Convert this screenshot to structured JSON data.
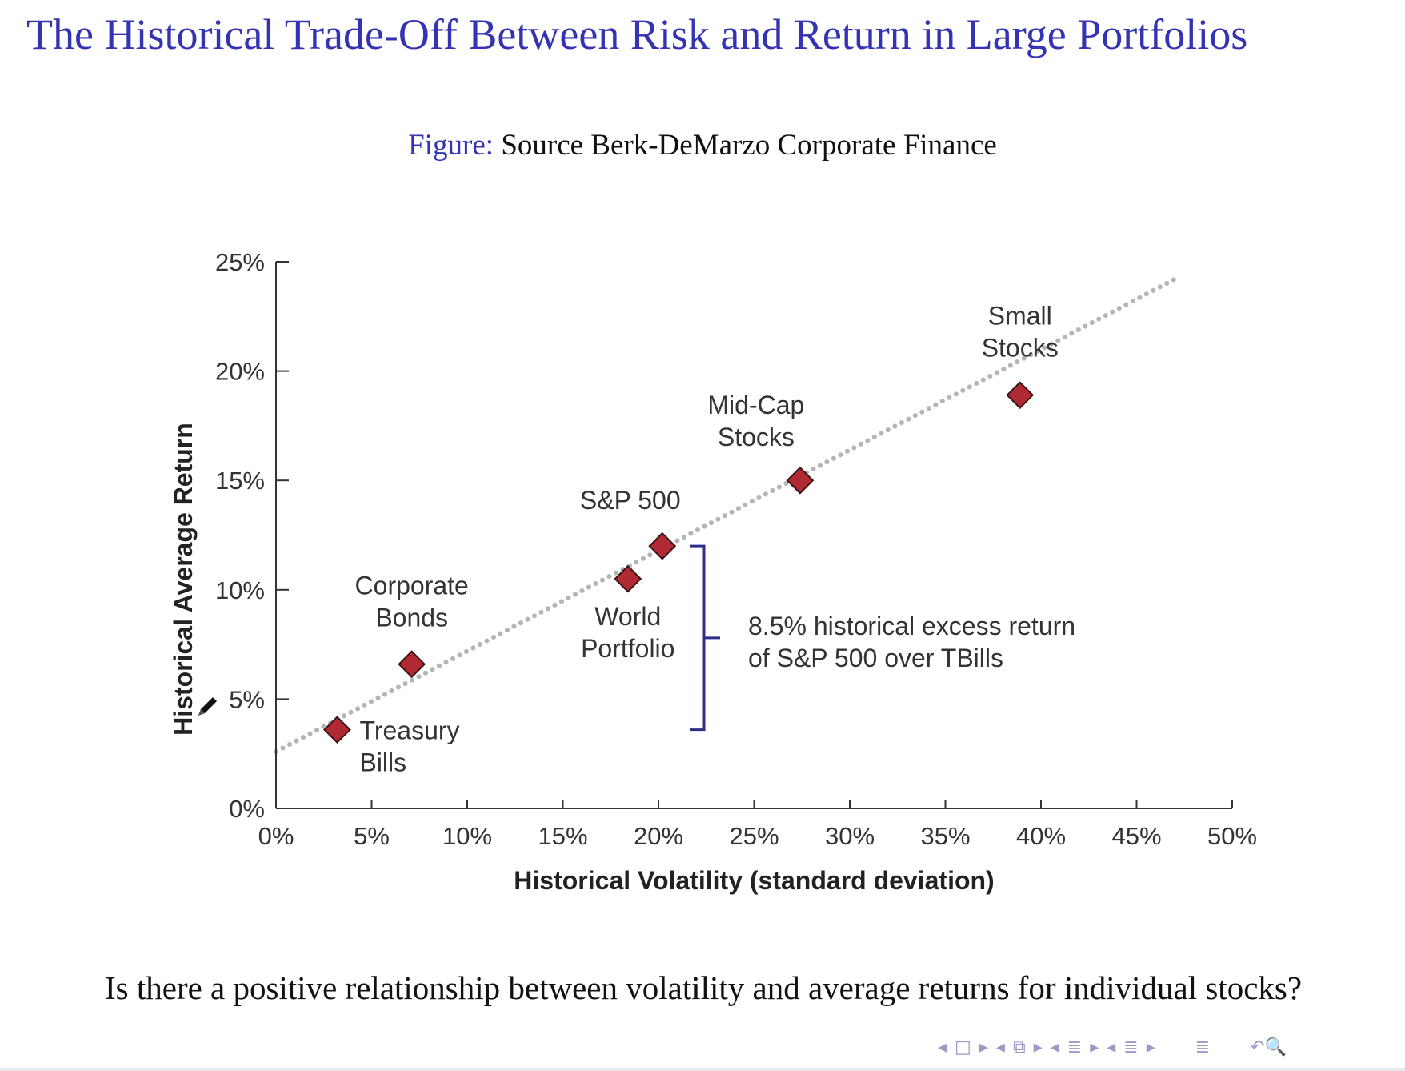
{
  "slide": {
    "title": "The Historical Trade-Off Between Risk and Return in Large Portfolios",
    "caption_label": "Figure:",
    "caption_text": " Source Berk-DeMarzo Corporate Finance",
    "question": "Is there a positive relationship between volatility and average returns for individual stocks?"
  },
  "navigation": {
    "icons": [
      "nav-left-arrow",
      "frame-icon",
      "nav-right-arrow",
      "nav-left-arrow",
      "subsection-icon",
      "nav-right-arrow",
      "nav-left-arrow",
      "section-icon",
      "nav-right-arrow",
      "nav-left-arrow",
      "document-icon",
      "nav-right-arrow",
      "align-icon",
      "undo-search-icon"
    ]
  },
  "chart_data": {
    "type": "scatter",
    "xlabel": "Historical Volatility (standard deviation)",
    "ylabel": "Historical Average Return",
    "xlim": [
      0,
      50
    ],
    "ylim": [
      0,
      25
    ],
    "x_ticks": [
      0,
      5,
      10,
      15,
      20,
      25,
      30,
      35,
      40,
      45,
      50
    ],
    "x_tick_labels": [
      "0%",
      "5%",
      "10%",
      "15%",
      "20%",
      "25%",
      "30%",
      "35%",
      "40%",
      "45%",
      "50%"
    ],
    "y_ticks": [
      0,
      5,
      10,
      15,
      20,
      25
    ],
    "y_tick_labels": [
      "0%",
      "5%",
      "10%",
      "15%",
      "20%",
      "25%"
    ],
    "grid": false,
    "points": [
      {
        "label": "Treasury Bills",
        "label_lines": [
          "Treasury",
          "Bills"
        ],
        "x": 3.2,
        "y": 3.6
      },
      {
        "label": "Corporate Bonds",
        "label_lines": [
          "Corporate",
          "Bonds"
        ],
        "x": 7.1,
        "y": 6.6
      },
      {
        "label": "World Portfolio",
        "label_lines": [
          "World",
          "Portfolio"
        ],
        "x": 18.4,
        "y": 10.5
      },
      {
        "label": "S&P 500",
        "label_lines": [
          "S&P 500"
        ],
        "x": 20.2,
        "y": 12.0
      },
      {
        "label": "Mid-Cap Stocks",
        "label_lines": [
          "Mid-Cap",
          "Stocks"
        ],
        "x": 27.4,
        "y": 15.0
      },
      {
        "label": "Small Stocks",
        "label_lines": [
          "Small",
          "Stocks"
        ],
        "x": 38.9,
        "y": 18.9
      }
    ],
    "trend_line": {
      "style": "dotted",
      "x": [
        0,
        47.2
      ],
      "y": [
        2.6,
        24.3
      ]
    },
    "annotation": {
      "lines": [
        "8.5% historical excess return",
        "of S&P 500 over TBills"
      ],
      "bracket_from_y": 3.6,
      "bracket_to_y": 12.0
    },
    "colors": {
      "marker_fill": "#b02a33",
      "marker_stroke": "#3a1416",
      "trend_line": "#b5b5b5",
      "axis": "#333333",
      "label_text": "#333333",
      "bracket": "#2e2e8a"
    }
  }
}
